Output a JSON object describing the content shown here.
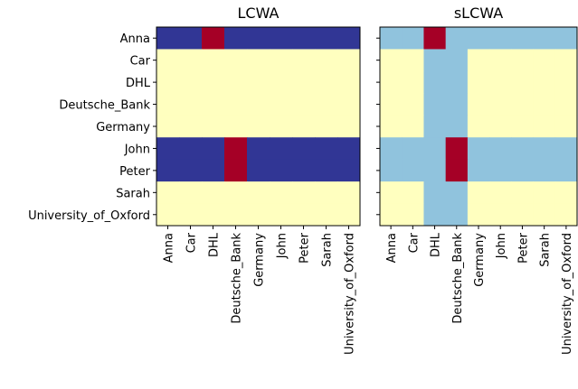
{
  "chart_data": [
    {
      "type": "heatmap",
      "title": "LCWA",
      "rows": [
        "Anna",
        "Car",
        "DHL",
        "Deutsche_Bank",
        "Germany",
        "John",
        "Peter",
        "Sarah",
        "University_of_Oxford"
      ],
      "columns": [
        "Anna",
        "Car",
        "DHL",
        "Deutsche_Bank",
        "Germany",
        "John",
        "Peter",
        "Sarah",
        "University_of_Oxford"
      ],
      "values": [
        [
          0,
          0,
          1,
          0,
          0,
          0,
          0,
          0,
          0
        ],
        [
          0.5,
          0.5,
          0.5,
          0.5,
          0.5,
          0.5,
          0.5,
          0.5,
          0.5
        ],
        [
          0.5,
          0.5,
          0.5,
          0.5,
          0.5,
          0.5,
          0.5,
          0.5,
          0.5
        ],
        [
          0.5,
          0.5,
          0.5,
          0.5,
          0.5,
          0.5,
          0.5,
          0.5,
          0.5
        ],
        [
          0.5,
          0.5,
          0.5,
          0.5,
          0.5,
          0.5,
          0.5,
          0.5,
          0.5
        ],
        [
          0,
          0,
          0,
          1,
          0,
          0,
          0,
          0,
          0
        ],
        [
          0,
          0,
          0,
          1,
          0,
          0,
          0,
          0,
          0
        ],
        [
          0.5,
          0.5,
          0.5,
          0.5,
          0.5,
          0.5,
          0.5,
          0.5,
          0.5
        ],
        [
          0.5,
          0.5,
          0.5,
          0.5,
          0.5,
          0.5,
          0.5,
          0.5,
          0.5
        ]
      ],
      "vlim": [
        0,
        1
      ],
      "colormap": [
        "#313695",
        "#4575b4",
        "#74add1",
        "#abd9e9",
        "#e0f3f8",
        "#ffffbf",
        "#fee090",
        "#fdae61",
        "#f46d43",
        "#d73027",
        "#a50026"
      ]
    },
    {
      "type": "heatmap",
      "title": "sLCWA",
      "columns": [
        "Anna",
        "Car",
        "DHL",
        "Deutsche_Bank",
        "Germany",
        "John",
        "Peter",
        "Sarah",
        "University_of_Oxford"
      ],
      "values": [
        [
          0.25,
          0.25,
          1,
          0.25,
          0.25,
          0.25,
          0.25,
          0.25,
          0.25
        ],
        [
          0.5,
          0.5,
          0.25,
          0.25,
          0.5,
          0.5,
          0.5,
          0.5,
          0.5
        ],
        [
          0.5,
          0.5,
          0.25,
          0.25,
          0.5,
          0.5,
          0.5,
          0.5,
          0.5
        ],
        [
          0.5,
          0.5,
          0.25,
          0.25,
          0.5,
          0.5,
          0.5,
          0.5,
          0.5
        ],
        [
          0.5,
          0.5,
          0.25,
          0.25,
          0.5,
          0.5,
          0.5,
          0.5,
          0.5
        ],
        [
          0.25,
          0.25,
          0.25,
          1,
          0.25,
          0.25,
          0.25,
          0.25,
          0.25
        ],
        [
          0.25,
          0.25,
          0.25,
          1,
          0.25,
          0.25,
          0.25,
          0.25,
          0.25
        ],
        [
          0.5,
          0.5,
          0.25,
          0.25,
          0.5,
          0.5,
          0.5,
          0.5,
          0.5
        ],
        [
          0.5,
          0.5,
          0.25,
          0.25,
          0.5,
          0.5,
          0.5,
          0.5,
          0.5
        ]
      ],
      "vlim": [
        0,
        1
      ],
      "colormap": [
        "#313695",
        "#4575b4",
        "#74add1",
        "#abd9e9",
        "#e0f3f8",
        "#ffffbf",
        "#fee090",
        "#fdae61",
        "#f46d43",
        "#d73027",
        "#a50026"
      ]
    }
  ]
}
